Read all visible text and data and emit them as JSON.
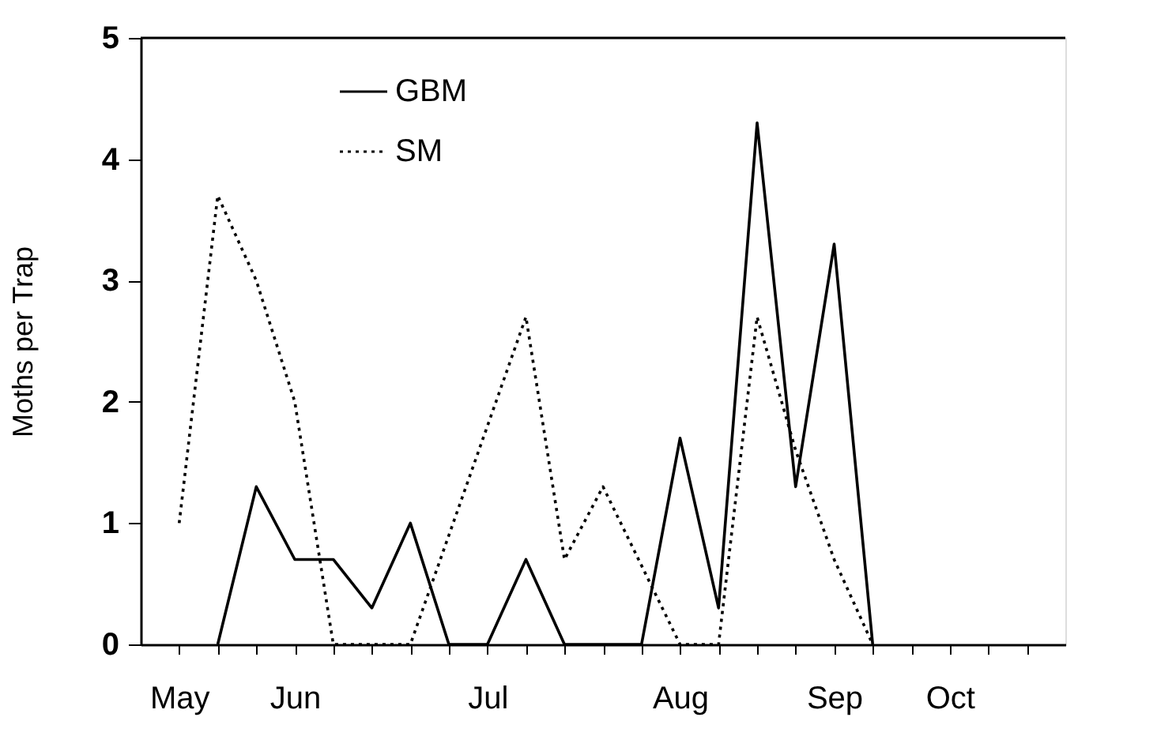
{
  "chart_data": {
    "type": "line",
    "ylabel": "Moths per Trap",
    "categories": [
      "May",
      null,
      null,
      "Jun",
      null,
      null,
      null,
      null,
      "Jul",
      null,
      null,
      null,
      null,
      "Aug",
      null,
      null,
      null,
      "Sep",
      null,
      null,
      "Oct",
      null,
      null
    ],
    "ylim": [
      0,
      5
    ],
    "yticks": [
      0,
      1,
      2,
      3,
      4,
      5
    ],
    "grid": false,
    "legend": "top left",
    "marker": "none",
    "series": [
      {
        "name": "GBM",
        "color": "#000000",
        "line_style": "solid",
        "values": [
          null,
          0,
          1.3,
          0.7,
          0.7,
          0.3,
          1.0,
          0,
          0,
          0.7,
          0,
          0,
          0,
          1.7,
          0.3,
          4.3,
          1.3,
          3.3,
          0,
          null,
          null,
          null,
          null
        ]
      },
      {
        "name": "SM",
        "color": "#000000",
        "line_style": "dotted",
        "values": [
          1.0,
          3.7,
          3.0,
          2.0,
          0,
          0,
          0,
          0.9,
          1.8,
          2.7,
          0.7,
          1.3,
          0.65,
          0,
          0,
          2.7,
          1.6,
          0.7,
          0,
          null,
          null,
          null,
          null
        ]
      }
    ]
  }
}
